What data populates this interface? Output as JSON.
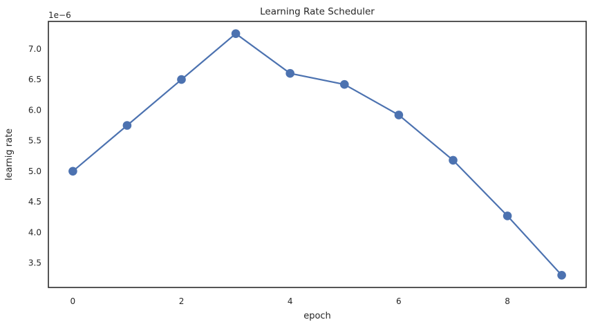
{
  "figure": {
    "background_color": "#ffffff",
    "text_color": "#262626",
    "spine_color": "#2b2b2b"
  },
  "chart_data": {
    "type": "line",
    "title": "Learning Rate Scheduler",
    "xlabel": "epoch",
    "ylabel": "learnig rate",
    "y_offset_label": "1e−6",
    "unit_multiplier": "1e-6",
    "x": [
      0,
      1,
      2,
      3,
      4,
      5,
      6,
      7,
      8,
      9
    ],
    "series": [
      {
        "name": "learning rate",
        "values": [
          5.0,
          5.75,
          6.5,
          7.25,
          6.6,
          6.42,
          5.92,
          5.18,
          4.27,
          3.3
        ],
        "color": "#4C72B0",
        "marker": "o"
      }
    ],
    "x_ticks": [
      0,
      2,
      4,
      6,
      8
    ],
    "y_ticks": [
      3.5,
      4.0,
      4.5,
      5.0,
      5.5,
      6.0,
      6.5,
      7.0
    ],
    "xlim": [
      -0.45,
      9.45
    ],
    "ylim": [
      3.1,
      7.45
    ],
    "grid": false,
    "legend": null
  }
}
